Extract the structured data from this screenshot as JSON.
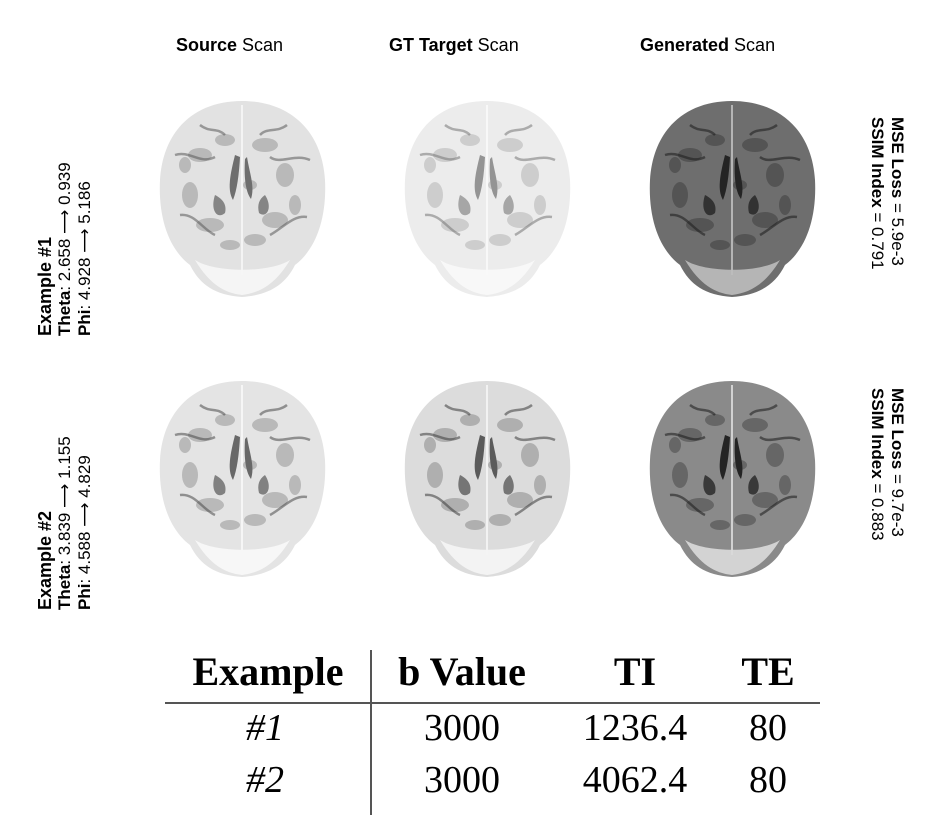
{
  "column_headers": [
    {
      "bold": "Source",
      "rest": " Scan"
    },
    {
      "bold": "GT Target",
      "rest": " Scan"
    },
    {
      "bold": "Generated",
      "rest": " Scan"
    }
  ],
  "examples": [
    {
      "title": "Example #1",
      "theta_label": "Theta",
      "theta_text": ": 2.658 ⟶ 0.939",
      "phi_label": "Phi",
      "phi_text": ": 4.928 ⟶ 5.186",
      "mse_label": "MSE Loss",
      "mse_text": " = 5.9e-3",
      "ssim_label": "SSIM Index",
      "ssim_text": " = 0.791"
    },
    {
      "title": "Example #2",
      "theta_label": "Theta",
      "theta_text": ": 3.839 ⟶ 1.155",
      "phi_label": "Phi",
      "phi_text": ": 4.588 ⟶ 4.829",
      "mse_label": "MSE Loss",
      "mse_text": " = 9.7e-3",
      "ssim_label": "SSIM Index",
      "ssim_text": " = 0.883"
    }
  ],
  "table": {
    "headers": [
      "Example",
      "b Value",
      "TI",
      "TE"
    ],
    "rows": [
      [
        "#1",
        "3000",
        "1236.4",
        "80"
      ],
      [
        "#2",
        "3000",
        "4062.4",
        "80"
      ]
    ]
  }
}
